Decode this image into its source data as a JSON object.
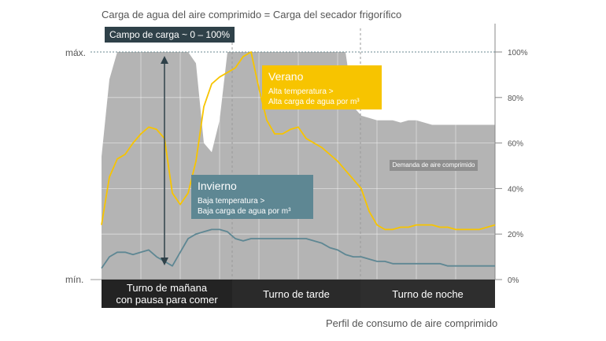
{
  "title": "Carga de agua del aire comprimido = Carga del secador frigorífico",
  "footer": "Perfil de consumo de aire comprimido",
  "levels": {
    "max": "máx.",
    "min": "mín."
  },
  "range_label": "Campo de carga ~ 0 – 100%",
  "summer": {
    "title": "Verano",
    "line1": "Alta temperatura >",
    "line2": "Alta carga de agua por m³",
    "color": "#f7c400"
  },
  "winter": {
    "title": "Invierno",
    "line1": "Baja temperatura >",
    "line2": "Baja carga de agua por m³",
    "color": "#5e8793"
  },
  "demand_label": "Demanda de aire comprimido",
  "shifts": [
    {
      "l1": "Turno de mañana",
      "l2": "con pausa para comer"
    },
    {
      "l1": "Turno de tarde",
      "l2": ""
    },
    {
      "l1": "Turno de noche",
      "l2": ""
    }
  ],
  "chart_data": {
    "type": "area",
    "y_unit": "%",
    "ylim": [
      0,
      100
    ],
    "yticks": [
      "0%",
      "20%",
      "40%",
      "60%",
      "80%",
      "100%"
    ],
    "x": [
      0,
      2,
      4,
      6,
      8,
      10,
      12,
      14,
      16,
      18,
      20,
      22,
      24,
      26,
      28,
      30,
      32,
      34,
      36,
      38,
      40,
      42,
      44,
      46,
      48,
      50,
      52,
      54,
      56,
      58,
      60,
      62,
      64,
      66,
      68,
      70,
      72,
      74,
      76,
      78,
      80,
      82,
      84,
      86,
      88,
      90,
      92,
      94,
      96,
      98,
      100
    ],
    "series": [
      {
        "name": "Demanda de aire comprimido",
        "color": "#b4b4b4",
        "values": [
          54,
          88,
          100,
          100,
          100,
          100,
          100,
          100,
          100,
          100,
          100,
          100,
          95,
          60,
          56,
          70,
          100,
          100,
          100,
          100,
          100,
          100,
          100,
          100,
          100,
          100,
          100,
          100,
          100,
          100,
          100,
          100,
          76,
          72,
          71,
          70,
          70,
          70,
          69,
          70,
          70,
          69,
          68,
          68,
          68,
          68,
          68,
          68,
          68,
          68,
          68
        ]
      },
      {
        "name": "Verano",
        "color": "#f7c400",
        "values": [
          24,
          45,
          53,
          55,
          60,
          64,
          67,
          66,
          62,
          38,
          33,
          38,
          52,
          76,
          86,
          89,
          91,
          93,
          98,
          100,
          84,
          70,
          64,
          64,
          66,
          67,
          62,
          60,
          58,
          55,
          52,
          48,
          44,
          40,
          30,
          24,
          22,
          22,
          23,
          23,
          24,
          24,
          24,
          23,
          23,
          22,
          22,
          22,
          22,
          23,
          24
        ]
      },
      {
        "name": "Invierno",
        "color": "#5e8793",
        "values": [
          5,
          10,
          12,
          12,
          11,
          12,
          13,
          10,
          8,
          6,
          12,
          18,
          20,
          21,
          22,
          22,
          21,
          18,
          17,
          18,
          18,
          18,
          18,
          18,
          18,
          18,
          18,
          17,
          16,
          14,
          13,
          11,
          10,
          10,
          9,
          8,
          8,
          7,
          7,
          7,
          7,
          7,
          7,
          7,
          6,
          6,
          6,
          6,
          6,
          6,
          6
        ]
      }
    ]
  }
}
